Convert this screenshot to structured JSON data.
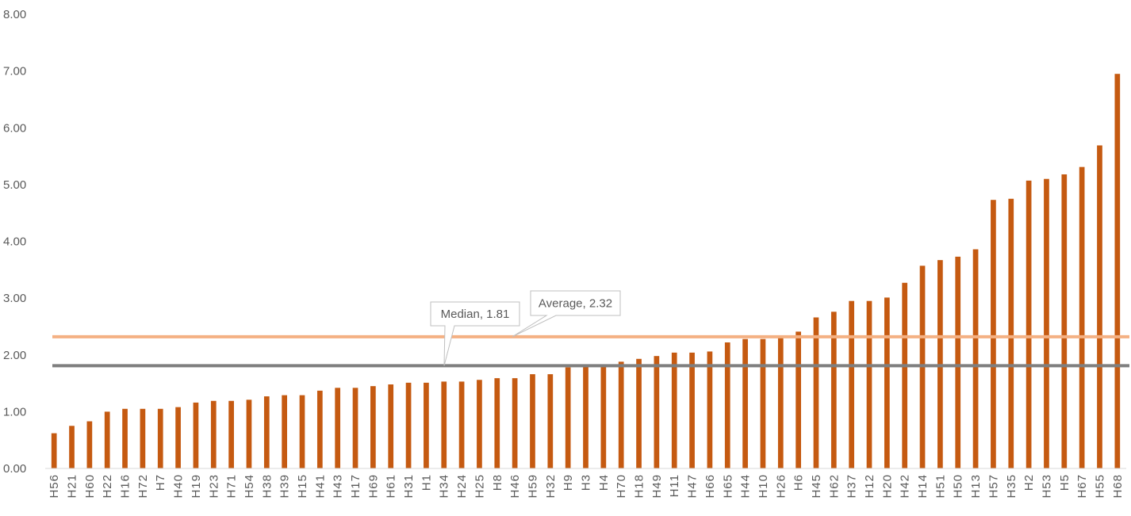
{
  "chart_data": {
    "type": "bar",
    "title": "",
    "xlabel": "",
    "ylabel": "",
    "ylim": [
      0,
      8
    ],
    "yticks": [
      "0.00",
      "1.00",
      "2.00",
      "3.00",
      "4.00",
      "5.00",
      "6.00",
      "7.00",
      "8.00"
    ],
    "grid": false,
    "categories": [
      "H56",
      "H21",
      "H60",
      "H22",
      "H16",
      "H72",
      "H7",
      "H40",
      "H19",
      "H23",
      "H71",
      "H54",
      "H38",
      "H39",
      "H15",
      "H41",
      "H43",
      "H17",
      "H69",
      "H61",
      "H31",
      "H1",
      "H34",
      "H24",
      "H25",
      "H8",
      "H46",
      "H59",
      "H32",
      "H9",
      "H3",
      "H4",
      "H70",
      "H18",
      "H49",
      "H11",
      "H47",
      "H66",
      "H65",
      "H44",
      "H10",
      "H26",
      "H6",
      "H45",
      "H62",
      "H37",
      "H12",
      "H20",
      "H42",
      "H14",
      "H51",
      "H50",
      "H13",
      "H57",
      "H35",
      "H2",
      "H53",
      "H5",
      "H67",
      "H55",
      "H68"
    ],
    "values": [
      0.62,
      0.75,
      0.83,
      1.0,
      1.05,
      1.05,
      1.05,
      1.08,
      1.16,
      1.19,
      1.19,
      1.21,
      1.27,
      1.29,
      1.29,
      1.37,
      1.42,
      1.42,
      1.45,
      1.48,
      1.51,
      1.51,
      1.53,
      1.53,
      1.56,
      1.59,
      1.59,
      1.66,
      1.66,
      1.78,
      1.81,
      1.81,
      1.88,
      1.93,
      1.98,
      2.04,
      2.04,
      2.06,
      2.22,
      2.28,
      2.28,
      2.33,
      2.41,
      2.66,
      2.76,
      2.95,
      2.95,
      3.01,
      3.27,
      3.57,
      3.67,
      3.73,
      3.86,
      4.73,
      4.75,
      5.07,
      5.1,
      5.18,
      5.31,
      5.69,
      6.95
    ],
    "bar_color": "#C55A11",
    "reference_lines": [
      {
        "label": "Median, 1.81",
        "value": 1.81,
        "color": "#7F7F7F"
      },
      {
        "label": "Average, 2.32",
        "value": 2.32,
        "color": "#F4B183"
      }
    ]
  }
}
